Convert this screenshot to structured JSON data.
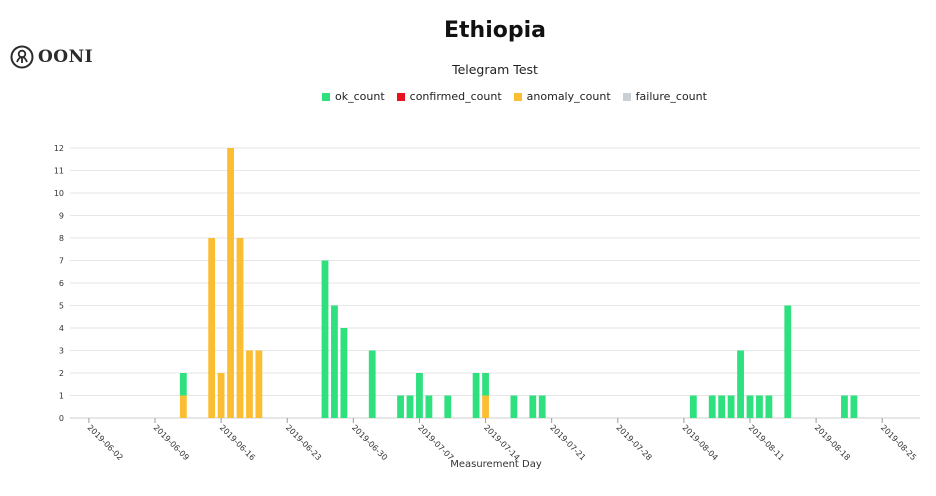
{
  "brand": {
    "name": "OONI",
    "logo_icon": "ooni-octopus-icon"
  },
  "chart_data": {
    "type": "bar",
    "stacked": true,
    "title": "Ethiopia",
    "subtitle": "Telegram Test",
    "xlabel": "Measurement Day",
    "ylabel": "",
    "ylim": [
      0,
      12
    ],
    "y_ticks": [
      0,
      1,
      2,
      3,
      4,
      5,
      6,
      7,
      8,
      9,
      10,
      11,
      12
    ],
    "x_range": [
      "2019-05-31",
      "2019-08-29"
    ],
    "x_ticks": [
      "2019-06-02",
      "2019-06-09",
      "2019-06-16",
      "2019-06-23",
      "2019-06-30",
      "2019-07-07",
      "2019-07-14",
      "2019-07-21",
      "2019-07-28",
      "2019-08-04",
      "2019-08-11",
      "2019-08-18",
      "2019-08-25"
    ],
    "grid": true,
    "legend_position": "top-center",
    "legend": [
      {
        "key": "ok_count",
        "label": "ok_count",
        "color": "#2ee07e"
      },
      {
        "key": "confirmed_count",
        "label": "confirmed_count",
        "color": "#e8141c"
      },
      {
        "key": "anomaly_count",
        "label": "anomaly_count",
        "color": "#fbbe33"
      },
      {
        "key": "failure_count",
        "label": "failure_count",
        "color": "#c9cfd3"
      }
    ],
    "bars": [
      {
        "x": "2019-06-12",
        "ok_count": 1,
        "anomaly_count": 1
      },
      {
        "x": "2019-06-15",
        "ok_count": 0,
        "anomaly_count": 8
      },
      {
        "x": "2019-06-16",
        "ok_count": 0,
        "anomaly_count": 2
      },
      {
        "x": "2019-06-17",
        "ok_count": 0,
        "anomaly_count": 12
      },
      {
        "x": "2019-06-18",
        "ok_count": 0,
        "anomaly_count": 8
      },
      {
        "x": "2019-06-19",
        "ok_count": 0,
        "anomaly_count": 3
      },
      {
        "x": "2019-06-20",
        "ok_count": 0,
        "anomaly_count": 3
      },
      {
        "x": "2019-06-27",
        "ok_count": 7,
        "anomaly_count": 0
      },
      {
        "x": "2019-06-28",
        "ok_count": 5,
        "anomaly_count": 0
      },
      {
        "x": "2019-06-29",
        "ok_count": 4,
        "anomaly_count": 0
      },
      {
        "x": "2019-07-02",
        "ok_count": 3,
        "anomaly_count": 0
      },
      {
        "x": "2019-07-05",
        "ok_count": 1,
        "anomaly_count": 0
      },
      {
        "x": "2019-07-06",
        "ok_count": 1,
        "anomaly_count": 0
      },
      {
        "x": "2019-07-07",
        "ok_count": 2,
        "anomaly_count": 0
      },
      {
        "x": "2019-07-08",
        "ok_count": 1,
        "anomaly_count": 0
      },
      {
        "x": "2019-07-10",
        "ok_count": 1,
        "anomaly_count": 0
      },
      {
        "x": "2019-07-13",
        "ok_count": 2,
        "anomaly_count": 0
      },
      {
        "x": "2019-07-14",
        "ok_count": 1,
        "anomaly_count": 1
      },
      {
        "x": "2019-07-17",
        "ok_count": 1,
        "anomaly_count": 0
      },
      {
        "x": "2019-07-19",
        "ok_count": 1,
        "anomaly_count": 0
      },
      {
        "x": "2019-07-20",
        "ok_count": 1,
        "anomaly_count": 0
      },
      {
        "x": "2019-08-05",
        "ok_count": 1,
        "anomaly_count": 0
      },
      {
        "x": "2019-08-07",
        "ok_count": 1,
        "anomaly_count": 0
      },
      {
        "x": "2019-08-08",
        "ok_count": 1,
        "anomaly_count": 0
      },
      {
        "x": "2019-08-09",
        "ok_count": 1,
        "anomaly_count": 0
      },
      {
        "x": "2019-08-10",
        "ok_count": 3,
        "anomaly_count": 0
      },
      {
        "x": "2019-08-11",
        "ok_count": 1,
        "anomaly_count": 0
      },
      {
        "x": "2019-08-12",
        "ok_count": 1,
        "anomaly_count": 0
      },
      {
        "x": "2019-08-13",
        "ok_count": 1,
        "anomaly_count": 0
      },
      {
        "x": "2019-08-15",
        "ok_count": 5,
        "anomaly_count": 0
      },
      {
        "x": "2019-08-21",
        "ok_count": 1,
        "anomaly_count": 0
      },
      {
        "x": "2019-08-22",
        "ok_count": 1,
        "anomaly_count": 0
      }
    ]
  }
}
